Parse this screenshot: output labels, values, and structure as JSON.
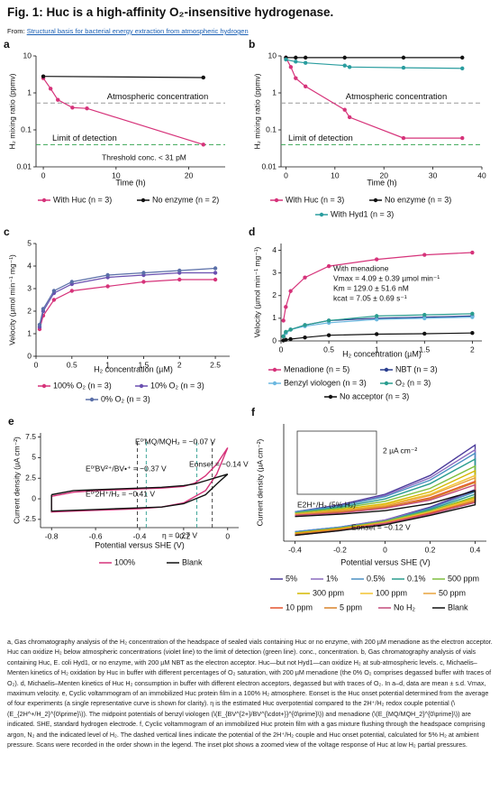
{
  "header": {
    "title": "Fig. 1: Huc is a high-affinity O₂-insensitive hydrogenase.",
    "source_prefix": "From:",
    "source_link": "Structural basis for bacterial energy extraction from atmospheric hydrogen"
  },
  "chart_data": [
    {
      "panel": "a",
      "type": "line",
      "log_y": true,
      "markers": true,
      "xlabel": "Time (h)",
      "ylabel": "H₂ mixing ratio (ppmv)",
      "xlim": [
        -1,
        25
      ],
      "xticks": [
        0,
        10,
        20
      ],
      "ylim": [
        0.01,
        10
      ],
      "yticks": [
        0.01,
        0.1,
        1,
        10
      ],
      "hlines": [
        {
          "value": 0.53,
          "label": "Atmospheric concentration",
          "color": "#9a9a9a"
        },
        {
          "value": 0.04,
          "label": "Limit of detection",
          "color": "#3aa655"
        }
      ],
      "annotations": [
        "Threshold conc. < 31 pM"
      ],
      "series": [
        {
          "name": "With Huc (n = 3)",
          "color": "#d6337a",
          "x": [
            0,
            1,
            2,
            4,
            6,
            22
          ],
          "values": [
            2.5,
            1.3,
            0.65,
            0.4,
            0.38,
            0.04
          ]
        },
        {
          "name": "No enzyme (n = 2)",
          "color": "#111111",
          "x": [
            0,
            22
          ],
          "values": [
            2.8,
            2.6
          ]
        }
      ]
    },
    {
      "panel": "b",
      "type": "line",
      "log_y": true,
      "markers": true,
      "xlabel": "Time (h)",
      "ylabel": "H₂ mixing ratio (ppmv)",
      "xlim": [
        -1,
        40
      ],
      "xticks": [
        0,
        10,
        20,
        30,
        40
      ],
      "ylim": [
        0.01,
        10
      ],
      "yticks": [
        0.01,
        0.1,
        1,
        10
      ],
      "hlines": [
        {
          "value": 0.53,
          "label": "Atmospheric concentration",
          "color": "#9a9a9a"
        },
        {
          "value": 0.04,
          "label": "Limit of detection",
          "color": "#3aa655"
        }
      ],
      "annotations": [],
      "series": [
        {
          "name": "With Huc (n = 3)",
          "color": "#d6337a",
          "x": [
            0,
            1,
            2,
            4,
            12,
            13,
            24,
            36
          ],
          "values": [
            9,
            5,
            2.5,
            1.5,
            0.35,
            0.22,
            0.06,
            0.06
          ]
        },
        {
          "name": "No enzyme (n = 3)",
          "color": "#111111",
          "x": [
            0,
            2,
            4,
            12,
            24,
            36
          ],
          "values": [
            9,
            9,
            9,
            9,
            9,
            9
          ]
        },
        {
          "name": "With Hyd1 (n = 3)",
          "color": "#2a9d9f",
          "x": [
            0,
            2,
            4,
            12,
            13,
            24,
            36
          ],
          "values": [
            8,
            7,
            6.5,
            5.5,
            5,
            4.8,
            4.6
          ]
        }
      ]
    },
    {
      "panel": "c",
      "type": "line",
      "log_y": false,
      "markers": true,
      "xlabel": "H₂ concentration (µM)",
      "ylabel": "Velocity (µmol min⁻¹ mg⁻¹)",
      "xlim": [
        0,
        2.7
      ],
      "xticks": [
        0,
        0.5,
        1,
        1.5,
        2,
        2.5
      ],
      "ylim": [
        0,
        5
      ],
      "yticks": [
        0,
        1,
        2,
        3,
        4,
        5
      ],
      "hlines": [],
      "annotations": [],
      "series": [
        {
          "name": "100% O₂ (n = 3)",
          "color": "#d6337a",
          "x": [
            0.05,
            0.1,
            0.25,
            0.5,
            1,
            1.5,
            2,
            2.5
          ],
          "values": [
            1.2,
            1.8,
            2.5,
            2.9,
            3.1,
            3.3,
            3.4,
            3.4
          ]
        },
        {
          "name": "10% O₂ (n = 3)",
          "color": "#6a4fb0",
          "x": [
            0.05,
            0.1,
            0.25,
            0.5,
            1,
            1.5,
            2,
            2.5
          ],
          "values": [
            1.3,
            2,
            2.8,
            3.2,
            3.5,
            3.6,
            3.7,
            3.7
          ]
        },
        {
          "name": "0% O₂ (n = 3)",
          "color": "#5a6fa8",
          "x": [
            0.05,
            0.1,
            0.25,
            0.5,
            1,
            1.5,
            2,
            2.5
          ],
          "values": [
            1.4,
            2.1,
            2.9,
            3.3,
            3.6,
            3.7,
            3.8,
            3.9
          ]
        }
      ]
    },
    {
      "panel": "d",
      "type": "line",
      "log_y": false,
      "markers": true,
      "xlabel": "H₂ concentration (µM)",
      "ylabel": "Velocity (µmol min⁻¹ mg⁻¹)",
      "xlim": [
        0,
        2.1
      ],
      "xticks": [
        0,
        0.5,
        1,
        1.5,
        2
      ],
      "ylim": [
        0,
        4.3
      ],
      "yticks": [
        0,
        1,
        2,
        3,
        4
      ],
      "hlines": [],
      "annotations": [
        "With menadione",
        "Vmax = 4.09 ± 0.39 µmol min⁻¹",
        "Km = 129.0 ± 51.6 nM",
        "kcat = 7.05 ± 0.69 s⁻¹"
      ],
      "series": [
        {
          "name": "Menadione (n = 5)",
          "color": "#d6337a",
          "x": [
            0.025,
            0.05,
            0.1,
            0.25,
            0.5,
            1,
            1.5,
            2
          ],
          "values": [
            0.9,
            1.5,
            2.2,
            2.8,
            3.3,
            3.6,
            3.8,
            3.9
          ]
        },
        {
          "name": "NBT (n = 3)",
          "color": "#2b3f8f",
          "x": [
            0.025,
            0.05,
            0.1,
            0.25,
            0.5,
            1,
            1.5,
            2
          ],
          "values": [
            0.2,
            0.35,
            0.5,
            0.7,
            0.9,
            1,
            1.05,
            1.1
          ]
        },
        {
          "name": "Benzyl viologen (n = 3)",
          "color": "#6cb8e0",
          "x": [
            0.025,
            0.05,
            0.1,
            0.25,
            0.5,
            1,
            1.5,
            2
          ],
          "values": [
            0.2,
            0.35,
            0.5,
            0.65,
            0.8,
            0.95,
            1,
            1.05
          ]
        },
        {
          "name": "O₂ (n = 3)",
          "color": "#2a9d8f",
          "x": [
            0.025,
            0.05,
            0.1,
            0.25,
            0.5,
            1,
            1.5,
            2
          ],
          "values": [
            0.2,
            0.4,
            0.5,
            0.7,
            0.9,
            1.1,
            1.15,
            1.2
          ]
        },
        {
          "name": "No acceptor (n = 3)",
          "color": "#111111",
          "x": [
            0.025,
            0.05,
            0.1,
            0.25,
            0.5,
            1,
            1.5,
            2
          ],
          "values": [
            0.02,
            0.05,
            0.08,
            0.15,
            0.25,
            0.3,
            0.32,
            0.35
          ]
        }
      ]
    },
    {
      "panel": "e",
      "type": "line",
      "log_y": false,
      "markers": false,
      "xlabel": "Potential versus SHE (V)",
      "ylabel": "Current density (µA cm⁻²)",
      "xlim": [
        -0.85,
        0.05
      ],
      "xticks": [
        -0.8,
        -0.6,
        -0.4,
        -0.2,
        0
      ],
      "ylim": [
        -3.5,
        8
      ],
      "yticks": [
        -2.5,
        0,
        2.5,
        5,
        7.5
      ],
      "hlines": [],
      "vlines": [
        {
          "value": -0.41,
          "color": "#333333"
        },
        {
          "value": -0.37,
          "color": "#2a9d8f"
        },
        {
          "value": -0.14,
          "color": "#2a9d8f"
        },
        {
          "value": -0.07,
          "color": "#333333"
        }
      ],
      "annotations": [
        "E⁰′MQ/MQH₂ = −0.07 V",
        "E⁰′BV²⁺/BV•⁺ = −0.37 V",
        "Eonset = −0.14 V",
        "E⁰′2H⁺/H₂ = −0.41 V",
        "η = 0.27 V"
      ],
      "series": [
        {
          "name": "100%",
          "color": "#d6337a",
          "x": [
            -0.8,
            -0.7,
            -0.6,
            -0.5,
            -0.4,
            -0.3,
            -0.2,
            -0.15,
            -0.1,
            -0.05,
            0,
            0,
            -0.05,
            -0.1,
            -0.2,
            -0.3,
            -0.4,
            -0.5,
            -0.6,
            -0.7,
            -0.8,
            -0.8
          ],
          "values": [
            0.3,
            0.8,
            1,
            1.1,
            1.2,
            1.3,
            1.5,
            1.9,
            2.8,
            4.2,
            6.2,
            6.2,
            3,
            1,
            -0.5,
            -1,
            -1.2,
            -1.3,
            -1.4,
            -1.5,
            -1.6,
            0.3
          ]
        },
        {
          "name": "Blank",
          "color": "#111111",
          "x": [
            -0.8,
            -0.7,
            -0.6,
            -0.5,
            -0.4,
            -0.3,
            -0.2,
            -0.15,
            -0.1,
            -0.05,
            0,
            0,
            -0.05,
            -0.1,
            -0.2,
            -0.3,
            -0.4,
            -0.5,
            -0.6,
            -0.7,
            -0.8,
            -0.8
          ],
          "values": [
            0.5,
            1,
            1.1,
            1.2,
            1.3,
            1.4,
            1.6,
            1.8,
            2.2,
            2.6,
            3,
            3,
            1.8,
            0.5,
            -0.6,
            -1,
            -1.1,
            -1.2,
            -1.3,
            -1.4,
            -1.5,
            0.5
          ]
        }
      ]
    },
    {
      "panel": "f",
      "type": "line",
      "log_y": false,
      "markers": false,
      "xlabel": "Potential versus SHE (V)",
      "ylabel": "Current density (µA cm⁻²)",
      "xlim": [
        -0.45,
        0.45
      ],
      "xticks": [
        -0.4,
        -0.2,
        0,
        0.2,
        0.4
      ],
      "ylim": [
        -2,
        8
      ],
      "yticks": [],
      "hlines": [],
      "annotations": [
        "Eonset = −0.12 V",
        "E2H⁺/H₂ (5% H₂)",
        "2 µA cm⁻²"
      ],
      "series": [
        {
          "name": "5%",
          "color": "#4b3b9b",
          "x": [
            -0.4,
            -0.2,
            0,
            0.2,
            0.4,
            0.4,
            0.2,
            0,
            -0.2,
            -0.4
          ],
          "values": [
            0.5,
            1.1,
            2,
            3.6,
            6.2,
            2.4,
            0.9,
            -0.2,
            -0.8,
            -1.2
          ]
        },
        {
          "name": "1%",
          "color": "#8a6bbf",
          "x": [
            -0.4,
            -0.2,
            0,
            0.2,
            0.4,
            0.4,
            0.2,
            0,
            -0.2,
            -0.4
          ],
          "values": [
            0.5,
            1,
            1.9,
            3.4,
            5.8,
            2.3,
            0.8,
            -0.2,
            -0.8,
            -1.2
          ]
        },
        {
          "name": "0.5%",
          "color": "#4a90c2",
          "x": [
            -0.4,
            -0.2,
            0,
            0.2,
            0.4,
            0.4,
            0.2,
            0,
            -0.2,
            -0.4
          ],
          "values": [
            0.5,
            1,
            1.8,
            3.2,
            5.5,
            2.2,
            0.8,
            -0.3,
            -0.8,
            -1.2
          ]
        },
        {
          "name": "0.1%",
          "color": "#2a9d8f",
          "x": [
            -0.4,
            -0.2,
            0,
            0.2,
            0.4,
            0.4,
            0.2,
            0,
            -0.2,
            -0.4
          ],
          "values": [
            0.4,
            0.9,
            1.6,
            2.9,
            5,
            2,
            0.7,
            -0.3,
            -0.9,
            -1.3
          ]
        },
        {
          "name": "500 ppm",
          "color": "#7fbf3f",
          "x": [
            -0.4,
            -0.2,
            0,
            0.2,
            0.4,
            0.4,
            0.2,
            0,
            -0.2,
            -0.4
          ],
          "values": [
            0.4,
            0.8,
            1.4,
            2.5,
            4.4,
            1.8,
            0.6,
            -0.3,
            -0.9,
            -1.3
          ]
        },
        {
          "name": "300 ppm",
          "color": "#d4b800",
          "x": [
            -0.4,
            -0.2,
            0,
            0.2,
            0.4,
            0.4,
            0.2,
            0,
            -0.2,
            -0.4
          ],
          "values": [
            0.3,
            0.7,
            1.2,
            2.2,
            4,
            1.7,
            0.5,
            -0.4,
            -0.9,
            -1.3
          ]
        },
        {
          "name": "100 ppm",
          "color": "#f2c230",
          "x": [
            -0.4,
            -0.2,
            0,
            0.2,
            0.4,
            0.4,
            0.2,
            0,
            -0.2,
            -0.4
          ],
          "values": [
            0.3,
            0.6,
            1.1,
            2,
            3.6,
            1.6,
            0.5,
            -0.4,
            -1,
            -1.4
          ]
        },
        {
          "name": "50 ppm",
          "color": "#e8a33c",
          "x": [
            -0.4,
            -0.2,
            0,
            0.2,
            0.4,
            0.4,
            0.2,
            0,
            -0.2,
            -0.4
          ],
          "values": [
            0.3,
            0.6,
            1,
            1.9,
            3.4,
            1.5,
            0.4,
            -0.4,
            -1,
            -1.4
          ]
        },
        {
          "name": "10 ppm",
          "color": "#e2532d",
          "x": [
            -0.4,
            -0.2,
            0,
            0.2,
            0.4,
            0.4,
            0.2,
            0,
            -0.2,
            -0.4
          ],
          "values": [
            0.2,
            0.5,
            0.9,
            1.7,
            3.1,
            1.4,
            0.4,
            -0.5,
            -1,
            -1.4
          ]
        },
        {
          "name": "5 ppm",
          "color": "#d9822b",
          "x": [
            -0.4,
            -0.2,
            0,
            0.2,
            0.4,
            0.4,
            0.2,
            0,
            -0.2,
            -0.4
          ],
          "values": [
            0.2,
            0.5,
            0.9,
            1.6,
            3,
            1.4,
            0.3,
            -0.5,
            -1,
            -1.4
          ]
        },
        {
          "name": "No H₂",
          "color": "#c24a7a",
          "x": [
            -0.4,
            -0.2,
            0,
            0.2,
            0.4,
            0.4,
            0.2,
            0,
            -0.2,
            -0.4
          ],
          "values": [
            0.2,
            0.4,
            0.8,
            1.5,
            2.8,
            1.3,
            0.3,
            -0.5,
            -1.1,
            -1.5
          ]
        },
        {
          "name": "Blank",
          "color": "#111111",
          "x": [
            -0.4,
            -0.2,
            0,
            0.2,
            0.4,
            0.4,
            0.2,
            0,
            -0.2,
            -0.4
          ],
          "values": [
            0.1,
            0.3,
            0.6,
            1.2,
            2.3,
            1.1,
            0.2,
            -0.6,
            -1.1,
            -1.5
          ]
        }
      ]
    }
  ],
  "caption": [
    "a, Gas chromatography analysis of the H₂ concentration of the headspace of sealed vials containing Huc or no enzyme, with 200 µM menadione as the electron acceptor. Huc can oxidize H₂ below atmospheric concentrations (violet line) to the limit of detection (green line). conc., concentration. b, Gas chromatography analysis of vials containing Huc, E. coli Hyd1, or no enzyme, with 200 µM NBT as the electron acceptor. Huc—but not Hyd1—can oxidize H₂ at sub-atmospheric levels. c, Michaelis–Menten kinetics of H₂ oxidation by Huc in buffer with different percentages of O₂ saturation, with 200 µM menadione (the 0% O₂ comprises degassed buffer with traces of O₂). d, Michaelis–Menten kinetics of Huc H₂ consumption in buffer with different electron acceptors, degassed but with traces of O₂. In a–d, data are mean ± s.d. Vmax, maximum velocity. e, Cyclic voltammogram of an immobilized Huc protein film in a 100% H₂ atmosphere. Eonset is the Huc onset potential determined from the average of four experiments (a single representative curve is shown for clarity). η is the estimated Huc overpotential compared to the 2H⁺/H₂ redox couple potential (\\(E_{2H^+/H_2}^{0\\prime}\\)). The midpoint potentials of benzyl viologen (\\(E_{BV^{2+}/BV^{\\cdot+}}^{0\\prime}\\)) and menadione (\\(E_{MQ/MQH_2}^{0\\prime}\\)) are indicated. SHE, standard hydrogen electrode. f, Cyclic voltammogram of an immobilized Huc protein film with a gas mixture flushing through the headspace comprising argon, N₂ and the indicated level of H₂. The dashed vertical lines indicate the potential of the 2H⁺/H₂ couple and Huc onset potential, calculated for 5% H₂ at ambient pressure. Scans were recorded in the order shown in the legend. The inset plot shows a zoomed view of the voltage response of Huc at low H₂ partial pressures."
  ]
}
